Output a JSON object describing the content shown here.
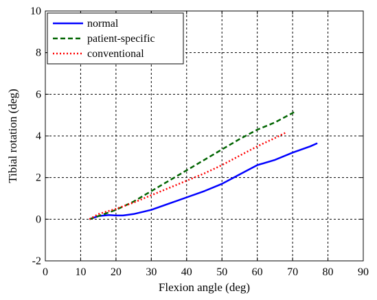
{
  "chart_data": {
    "type": "line",
    "title": "",
    "xlabel": "Flexion angle (deg)",
    "ylabel": "Tibial rotation (deg)",
    "xlim": [
      0,
      90
    ],
    "ylim": [
      -2,
      10
    ],
    "xticks": [
      0,
      10,
      20,
      30,
      40,
      50,
      60,
      70,
      80,
      90
    ],
    "yticks": [
      -2,
      0,
      2,
      4,
      6,
      8,
      10
    ],
    "xtick_labels": [
      "0",
      "10",
      "20",
      "30",
      "40",
      "50",
      "60",
      "70",
      "80",
      "90"
    ],
    "ytick_labels": [
      "-2",
      "0",
      "2",
      "4",
      "6",
      "8",
      "10"
    ],
    "grid": true,
    "legend_position": "top-left",
    "series": [
      {
        "name": "normal",
        "color": "#0000ff",
        "style": "solid",
        "x": [
          12.5,
          15,
          18,
          20,
          22,
          25,
          30,
          35,
          40,
          45,
          50,
          55,
          60,
          65,
          70,
          75,
          77
        ],
        "y": [
          0.0,
          0.15,
          0.2,
          0.18,
          0.18,
          0.25,
          0.45,
          0.75,
          1.05,
          1.35,
          1.7,
          2.15,
          2.6,
          2.85,
          3.2,
          3.5,
          3.65
        ]
      },
      {
        "name": "patient-specific",
        "color": "#006400",
        "style": "dashed",
        "x": [
          12.5,
          15,
          20,
          25,
          30,
          35,
          40,
          45,
          50,
          55,
          60,
          65,
          70,
          71
        ],
        "y": [
          0.0,
          0.15,
          0.45,
          0.85,
          1.35,
          1.85,
          2.35,
          2.85,
          3.35,
          3.85,
          4.3,
          4.65,
          5.1,
          5.2
        ]
      },
      {
        "name": "conventional",
        "color": "#ff0000",
        "style": "dotted",
        "x": [
          12.5,
          15,
          20,
          25,
          30,
          35,
          40,
          45,
          50,
          55,
          60,
          65,
          68
        ],
        "y": [
          0.0,
          0.25,
          0.5,
          0.8,
          1.15,
          1.5,
          1.85,
          2.2,
          2.6,
          3.05,
          3.5,
          3.9,
          4.15
        ]
      }
    ]
  }
}
